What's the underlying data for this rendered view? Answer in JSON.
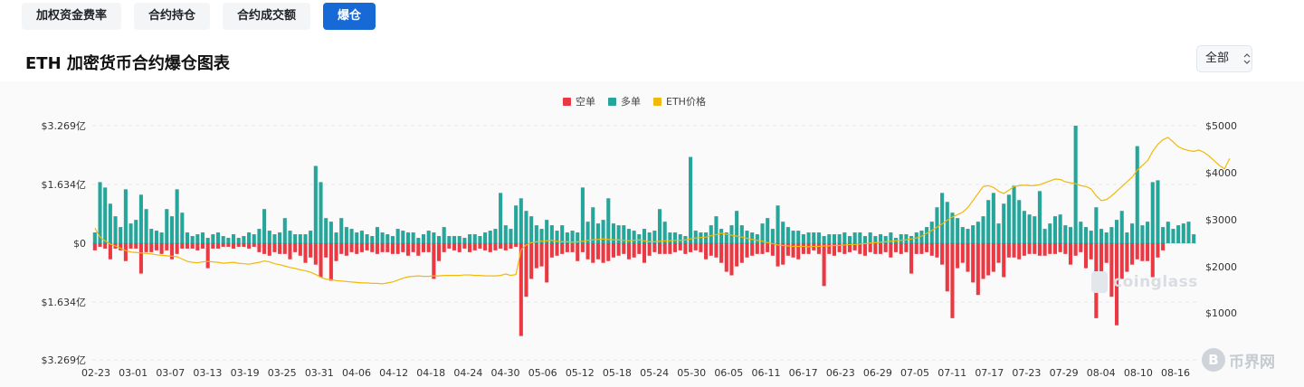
{
  "tabs": [
    {
      "label": "加权资金费率",
      "active": false
    },
    {
      "label": "合约持仓",
      "active": false
    },
    {
      "label": "合约成交额",
      "active": false
    },
    {
      "label": "爆仓",
      "active": true
    }
  ],
  "page_title": "ETH 加密货币合约爆仓图表",
  "range_select": {
    "value": "全部",
    "icon": "up-down-chevron-icon"
  },
  "colors": {
    "short": "#ea3943",
    "long": "#26a69a",
    "price": "#f0b90b",
    "accent": "#1769d6"
  },
  "watermark": "coinglass",
  "site_logo": {
    "mark": "B",
    "name": "币界网"
  },
  "chart_data": {
    "type": "bar",
    "legend": [
      "空单",
      "多单",
      "ETH价格"
    ],
    "legend_position": "top-center",
    "y_left_ticks": [
      "$3.269亿",
      "$1.634亿",
      "$0",
      "$1.634亿",
      "$3.269亿"
    ],
    "y_left_range": [
      -3.269,
      3.269
    ],
    "y_left_unit": "亿 USD",
    "y_right_ticks": [
      "$5000",
      "$4000",
      "$3000",
      "$2000",
      "$1000"
    ],
    "y_right_range": [
      500,
      5000
    ],
    "x_tick_labels": [
      "02-23",
      "03-01",
      "03-07",
      "03-13",
      "03-19",
      "03-25",
      "03-31",
      "04-06",
      "04-12",
      "04-18",
      "04-24",
      "04-30",
      "05-06",
      "05-12",
      "05-18",
      "05-24",
      "05-30",
      "06-05",
      "06-11",
      "06-17",
      "06-23",
      "06-29",
      "07-05",
      "07-11",
      "07-17",
      "07-23",
      "07-29",
      "08-04",
      "08-10",
      "08-16"
    ],
    "grid": true,
    "series": [
      {
        "name": "多单",
        "values": [
          0.3,
          1.7,
          1.55,
          1.1,
          0.75,
          0.45,
          1.5,
          0.55,
          0.65,
          1.35,
          0.95,
          0.4,
          0.35,
          0.3,
          0.95,
          0.75,
          1.5,
          0.85,
          0.3,
          0.2,
          0.25,
          0.3,
          0.15,
          0.25,
          0.3,
          0.2,
          0.15,
          0.25,
          0.15,
          0.2,
          0.3,
          0.25,
          0.4,
          0.95,
          0.35,
          0.25,
          0.3,
          0.7,
          0.35,
          0.25,
          0.25,
          0.25,
          0.35,
          2.15,
          1.7,
          0.7,
          0.6,
          0.3,
          0.7,
          0.45,
          0.4,
          0.3,
          0.35,
          0.25,
          0.2,
          0.45,
          0.3,
          0.25,
          0.2,
          0.4,
          0.35,
          0.3,
          0.3,
          0.15,
          0.25,
          0.35,
          0.3,
          0.2,
          0.45,
          0.2,
          0.2,
          0.2,
          0.15,
          0.25,
          0.25,
          0.2,
          0.3,
          0.35,
          0.4,
          1.4,
          0.5,
          0.4,
          1.05,
          1.25,
          0.9,
          0.75,
          0.5,
          0.4,
          0.65,
          0.5,
          0.35,
          0.5,
          0.3,
          0.35,
          0.3,
          1.55,
          0.6,
          1.0,
          0.55,
          0.65,
          1.25,
          0.55,
          0.5,
          0.5,
          0.4,
          0.35,
          0.25,
          0.4,
          0.3,
          0.35,
          0.95,
          0.6,
          0.3,
          0.3,
          0.25,
          0.2,
          2.4,
          0.35,
          0.3,
          0.3,
          0.5,
          0.75,
          0.4,
          0.3,
          0.5,
          0.9,
          0.5,
          0.35,
          0.3,
          0.25,
          0.55,
          0.7,
          0.4,
          1.05,
          0.6,
          0.45,
          0.35,
          0.35,
          0.25,
          0.3,
          0.3,
          0.3,
          0.2,
          0.25,
          0.25,
          0.25,
          0.3,
          0.2,
          0.3,
          0.3,
          0.2,
          0.3,
          0.2,
          0.25,
          0.2,
          0.3,
          0.15,
          0.25,
          0.25,
          0.2,
          0.3,
          0.35,
          0.45,
          0.6,
          1.0,
          1.4,
          1.15,
          0.85,
          0.7,
          0.45,
          0.4,
          0.5,
          0.6,
          0.75,
          1.2,
          1.4,
          0.55,
          1.1,
          1.35,
          1.6,
          1.2,
          0.9,
          0.8,
          0.75,
          1.45,
          0.4,
          0.55,
          0.75,
          0.8,
          0.5,
          0.45,
          3.269,
          0.6,
          0.45,
          0.35,
          1.0,
          0.4,
          0.3,
          0.45,
          0.65,
          0.9,
          0.3,
          0.55,
          2.7,
          0.5,
          0.6,
          1.7,
          1.75,
          0.45,
          0.6,
          0.4,
          0.5,
          0.55,
          0.6,
          0.25
        ]
      },
      {
        "name": "空单",
        "values": [
          0.2,
          0.1,
          0.15,
          0.45,
          0.15,
          0.2,
          0.5,
          0.15,
          0.15,
          0.85,
          0.25,
          0.25,
          0.2,
          0.3,
          0.2,
          0.45,
          0.3,
          0.15,
          0.15,
          0.15,
          0.2,
          0.15,
          0.7,
          0.15,
          0.15,
          0.1,
          0.1,
          0.15,
          0.1,
          0.1,
          0.15,
          0.1,
          0.25,
          0.3,
          0.35,
          0.25,
          0.3,
          0.3,
          0.45,
          0.25,
          0.35,
          0.55,
          0.4,
          0.6,
          0.95,
          0.4,
          1.05,
          0.5,
          0.3,
          0.35,
          0.25,
          0.3,
          0.25,
          0.2,
          0.25,
          0.3,
          0.25,
          0.25,
          0.3,
          0.3,
          0.25,
          0.35,
          0.25,
          0.35,
          0.25,
          0.25,
          1.0,
          0.5,
          0.25,
          0.15,
          0.2,
          0.25,
          0.15,
          0.25,
          0.2,
          0.15,
          0.2,
          0.25,
          0.2,
          0.15,
          0.2,
          0.15,
          0.1,
          2.6,
          1.5,
          1.0,
          0.7,
          0.65,
          1.1,
          0.4,
          0.35,
          0.3,
          0.25,
          0.25,
          0.5,
          0.25,
          0.45,
          0.55,
          0.45,
          0.55,
          0.5,
          0.4,
          0.35,
          0.3,
          0.45,
          0.4,
          0.3,
          0.55,
          0.35,
          0.25,
          0.3,
          0.3,
          0.3,
          0.25,
          0.2,
          0.3,
          0.25,
          0.2,
          0.25,
          0.45,
          0.35,
          0.4,
          0.55,
          0.8,
          0.9,
          0.65,
          0.55,
          0.4,
          0.35,
          0.3,
          0.3,
          0.25,
          0.35,
          0.65,
          0.6,
          0.35,
          0.4,
          0.45,
          0.3,
          0.3,
          0.2,
          0.3,
          1.2,
          0.3,
          0.35,
          0.25,
          0.3,
          0.25,
          0.2,
          0.3,
          0.35,
          0.25,
          0.3,
          0.3,
          0.25,
          0.4,
          0.25,
          0.3,
          0.25,
          0.85,
          0.3,
          0.3,
          0.25,
          0.35,
          0.4,
          0.6,
          1.35,
          2.1,
          0.7,
          0.55,
          0.8,
          1.1,
          1.45,
          1.0,
          0.9,
          0.8,
          0.55,
          0.95,
          0.4,
          0.4,
          0.45,
          0.35,
          0.3,
          0.3,
          0.35,
          0.35,
          0.3,
          0.3,
          0.25,
          0.3,
          0.6,
          0.35,
          0.25,
          0.7,
          0.45,
          2.1,
          0.8,
          0.55,
          1.5,
          2.3,
          1.0,
          0.8,
          0.6,
          0.45,
          0.5,
          0.5,
          0.95,
          0.4,
          0.2
        ]
      },
      {
        "name": "ETH价格",
        "values": [
          2810,
          2620,
          2540,
          2470,
          2430,
          2380,
          2330,
          2300,
          2290,
          2280,
          2270,
          2260,
          2240,
          2230,
          2220,
          2210,
          2200,
          2150,
          2100,
          2080,
          2070,
          2090,
          2100,
          2090,
          2080,
          2060,
          2070,
          2080,
          2060,
          2050,
          2040,
          2060,
          2080,
          2110,
          2090,
          2050,
          2030,
          2000,
          1970,
          1950,
          1920,
          1900,
          1870,
          1820,
          1760,
          1720,
          1710,
          1690,
          1680,
          1670,
          1660,
          1650,
          1640,
          1640,
          1630,
          1630,
          1620,
          1640,
          1660,
          1700,
          1740,
          1770,
          1780,
          1790,
          1780,
          1780,
          1790,
          1790,
          1800,
          1800,
          1800,
          1800,
          1810,
          1810,
          1800,
          1800,
          1790,
          1790,
          1790,
          1800,
          1830,
          1800,
          1820,
          2350,
          2450,
          2500,
          2520,
          2530,
          2540,
          2550,
          2530,
          2520,
          2520,
          2510,
          2520,
          2530,
          2550,
          2560,
          2570,
          2580,
          2570,
          2560,
          2560,
          2550,
          2540,
          2550,
          2560,
          2540,
          2520,
          2520,
          2530,
          2540,
          2540,
          2550,
          2550,
          2560,
          2580,
          2600,
          2610,
          2620,
          2650,
          2670,
          2700,
          2680,
          2660,
          2640,
          2620,
          2590,
          2570,
          2550,
          2530,
          2500,
          2480,
          2450,
          2440,
          2430,
          2420,
          2420,
          2420,
          2410,
          2420,
          2420,
          2430,
          2430,
          2440,
          2440,
          2450,
          2460,
          2460,
          2470,
          2480,
          2490,
          2500,
          2510,
          2520,
          2530,
          2540,
          2550,
          2560,
          2580,
          2600,
          2640,
          2700,
          2760,
          2830,
          2900,
          2980,
          3050,
          3100,
          3150,
          3250,
          3400,
          3550,
          3700,
          3720,
          3680,
          3600,
          3550,
          3620,
          3700,
          3720,
          3730,
          3720,
          3720,
          3740,
          3780,
          3820,
          3860,
          3850,
          3800,
          3780,
          3760,
          3720,
          3700,
          3650,
          3500,
          3400,
          3420,
          3500,
          3600,
          3700,
          3800,
          3900,
          4050,
          4150,
          4250,
          4450,
          4600,
          4700,
          4750,
          4650,
          4550,
          4500,
          4470,
          4450,
          4480,
          4430,
          4350,
          4250,
          4150,
          4080,
          4300
        ]
      }
    ]
  }
}
